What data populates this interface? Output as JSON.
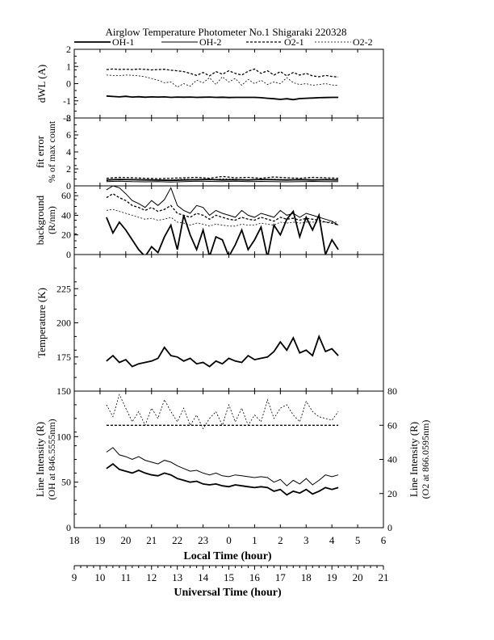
{
  "title": "Airglow Temperature Photometer No.1  Shigaraki   220328",
  "legend": [
    {
      "name": "OH-1",
      "dash": "none",
      "width": 1.8
    },
    {
      "name": "OH-2",
      "dash": "none",
      "width": 1.0
    },
    {
      "name": "O2-1",
      "dash": "3,2",
      "width": 1.3
    },
    {
      "name": "O2-2",
      "dash": "2,2",
      "width": 0.8
    }
  ],
  "chart_data": [
    {
      "type": "line",
      "panel": "dwl",
      "ylabel": "dWL (A)",
      "ylim": [
        -2,
        2
      ],
      "yticks": [
        "-2",
        "-1",
        "0",
        "1",
        "2"
      ],
      "x": [
        19.25,
        19.5,
        19.75,
        20,
        20.25,
        20.5,
        20.75,
        21,
        21.25,
        21.5,
        21.75,
        22,
        22.25,
        22.5,
        22.75,
        23,
        23.25,
        23.5,
        23.75,
        24,
        24.25,
        24.5,
        24.75,
        25,
        25.25,
        25.5,
        25.75,
        26,
        26.25,
        26.5,
        26.75,
        27,
        27.25,
        27.5,
        27.75,
        28,
        28.25
      ],
      "series": [
        {
          "name": "OH-1",
          "values": [
            -0.72,
            -0.75,
            -0.77,
            -0.74,
            -0.78,
            -0.76,
            -0.79,
            -0.77,
            -0.78,
            -0.77,
            -0.8,
            -0.78,
            -0.79,
            -0.78,
            -0.8,
            -0.79,
            -0.78,
            -0.8,
            -0.79,
            -0.81,
            -0.8,
            -0.8,
            -0.8,
            -0.8,
            -0.82,
            -0.85,
            -0.88,
            -0.92,
            -0.88,
            -0.93,
            -0.87,
            -0.85,
            -0.84,
            -0.82,
            -0.81,
            -0.8,
            -0.8
          ]
        },
        {
          "name": "O2-1",
          "values": [
            0.82,
            0.85,
            0.83,
            0.84,
            0.82,
            0.85,
            0.83,
            0.8,
            0.82,
            0.84,
            0.78,
            0.75,
            0.7,
            0.6,
            0.48,
            0.65,
            0.45,
            0.7,
            0.55,
            0.75,
            0.6,
            0.5,
            0.72,
            0.85,
            0.6,
            0.75,
            0.5,
            0.7,
            0.45,
            0.65,
            0.5,
            0.6,
            0.45,
            0.4,
            0.48,
            0.42,
            0.38
          ]
        },
        {
          "name": "O2-2",
          "values": [
            0.5,
            0.48,
            0.47,
            0.5,
            0.49,
            0.45,
            0.4,
            0.3,
            0.2,
            0.05,
            0.1,
            -0.2,
            0.0,
            -0.15,
            0.2,
            0.05,
            0.35,
            -0.05,
            0.4,
            0.1,
            0.3,
            -0.1,
            0.25,
            0.0,
            0.2,
            -0.05,
            0.1,
            0.0,
            0.35,
            0.05,
            -0.05,
            0.0,
            -0.1,
            -0.05,
            0.0,
            -0.08,
            -0.1
          ]
        }
      ]
    },
    {
      "type": "line",
      "panel": "fit",
      "ylabel": "fit error",
      "ylabel2": "% of max count",
      "ylim": [
        0,
        8
      ],
      "yticks": [
        "0",
        "2",
        "4",
        "6",
        "8"
      ],
      "x": [
        19.25,
        19.75,
        20.25,
        20.75,
        21.25,
        21.75,
        22.25,
        22.75,
        23.25,
        23.75,
        24.25,
        24.75,
        25.25,
        25.75,
        26.25,
        26.75,
        27.25,
        27.75,
        28.25
      ],
      "series": [
        {
          "name": "OH-1",
          "values": [
            0.7,
            0.75,
            0.72,
            0.7,
            0.68,
            0.65,
            0.7,
            0.72,
            0.75,
            0.7,
            0.72,
            0.7,
            0.75,
            0.72,
            0.7,
            0.73,
            0.7,
            0.72,
            0.7
          ]
        },
        {
          "name": "OH-2",
          "values": [
            0.5,
            0.55,
            0.5,
            0.48,
            0.5,
            0.45,
            0.5,
            0.55,
            0.52,
            0.5,
            0.55,
            0.5,
            0.52,
            0.5,
            0.48,
            0.5,
            0.52,
            0.5,
            0.5
          ]
        },
        {
          "name": "O2-1",
          "values": [
            0.9,
            1.0,
            0.95,
            0.9,
            0.85,
            0.9,
            0.95,
            1.0,
            0.9,
            1.1,
            0.95,
            1.0,
            0.9,
            1.05,
            0.95,
            0.9,
            1.0,
            0.95,
            0.9
          ]
        },
        {
          "name": "O2-2",
          "values": [
            0.6,
            0.8,
            0.7,
            0.75,
            0.65,
            0.7,
            0.8,
            0.75,
            0.7,
            0.85,
            0.8,
            0.7,
            0.75,
            0.8,
            0.7,
            0.75,
            0.7,
            0.8,
            0.75
          ]
        }
      ]
    },
    {
      "type": "line",
      "panel": "background",
      "ylabel": "background",
      "ylabel2": "(R/nm)",
      "ylim": [
        0,
        70
      ],
      "yticks": [
        "0",
        "20",
        "40",
        "60"
      ],
      "x": [
        19.25,
        19.5,
        19.75,
        20,
        20.25,
        20.5,
        20.75,
        21,
        21.25,
        21.5,
        21.75,
        22,
        22.25,
        22.5,
        22.75,
        23,
        23.25,
        23.5,
        23.75,
        24,
        24.25,
        24.5,
        24.75,
        25,
        25.25,
        25.5,
        25.75,
        26,
        26.25,
        26.5,
        26.75,
        27,
        27.25,
        27.5,
        27.75,
        28,
        28.25
      ],
      "series": [
        {
          "name": "OH-1",
          "values": [
            38,
            22,
            33,
            25,
            15,
            5,
            -2,
            8,
            2,
            18,
            30,
            5,
            40,
            20,
            5,
            25,
            -2,
            18,
            15,
            -2,
            10,
            25,
            5,
            15,
            28,
            -3,
            30,
            20,
            36,
            44,
            18,
            38,
            25,
            40,
            0,
            15,
            5
          ]
        },
        {
          "name": "OH-2",
          "values": [
            66,
            70,
            68,
            62,
            55,
            52,
            48,
            55,
            50,
            56,
            68,
            50,
            45,
            42,
            50,
            48,
            40,
            45,
            42,
            40,
            38,
            45,
            40,
            38,
            42,
            40,
            38,
            45,
            40,
            42,
            38,
            42,
            40,
            38,
            36,
            34,
            30
          ]
        },
        {
          "name": "O2-1",
          "values": [
            58,
            62,
            58,
            55,
            50,
            48,
            45,
            48,
            44,
            46,
            50,
            42,
            40,
            38,
            42,
            40,
            36,
            40,
            38,
            36,
            35,
            38,
            36,
            35,
            38,
            36,
            34,
            38,
            36,
            37,
            35,
            37,
            36,
            35,
            33,
            32,
            30
          ]
        },
        {
          "name": "O2-2",
          "values": [
            45,
            46,
            44,
            42,
            40,
            38,
            36,
            37,
            35,
            36,
            38,
            33,
            32,
            30,
            32,
            31,
            29,
            31,
            30,
            29,
            29,
            31,
            30,
            30,
            32,
            31,
            30,
            33,
            32,
            33,
            32,
            33,
            33,
            33,
            33,
            33,
            33
          ]
        }
      ]
    },
    {
      "type": "line",
      "panel": "temperature",
      "ylabel": "Temperature (K)",
      "ylim": [
        150,
        250
      ],
      "yticks": [
        "175",
        "200",
        "225"
      ],
      "x": [
        19.25,
        19.5,
        19.75,
        20,
        20.25,
        20.5,
        20.75,
        21,
        21.25,
        21.5,
        21.75,
        22,
        22.25,
        22.5,
        22.75,
        23,
        23.25,
        23.5,
        23.75,
        24,
        24.25,
        24.5,
        24.75,
        25,
        25.25,
        25.5,
        25.75,
        26,
        26.25,
        26.5,
        26.75,
        27,
        27.25,
        27.5,
        27.75,
        28,
        28.25
      ],
      "series": [
        {
          "name": "OH-1",
          "values": [
            172,
            176,
            171,
            173,
            168,
            170,
            171,
            172,
            174,
            182,
            176,
            175,
            172,
            174,
            170,
            171,
            168,
            172,
            170,
            174,
            172,
            171,
            176,
            173,
            174,
            175,
            179,
            186,
            180,
            189,
            178,
            180,
            176,
            190,
            179,
            181,
            176
          ]
        }
      ]
    },
    {
      "type": "line",
      "panel": "intensity",
      "ylabel": "Line Intensity (R)",
      "ylabel2": "(OH at 846.5555nm)",
      "ylabel_right": "Line Intensity (R)",
      "ylabel_right2": "(O2 at 866.0595nm)",
      "ylim": [
        0,
        150
      ],
      "yticks": [
        "0",
        "50",
        "100",
        "150"
      ],
      "ylim_right": [
        0,
        80
      ],
      "yticks_right": [
        "0",
        "20",
        "40",
        "60",
        "80"
      ],
      "x": [
        19.25,
        19.5,
        19.75,
        20,
        20.25,
        20.5,
        20.75,
        21,
        21.25,
        21.5,
        21.75,
        22,
        22.25,
        22.5,
        22.75,
        23,
        23.25,
        23.5,
        23.75,
        24,
        24.25,
        24.5,
        24.75,
        25,
        25.25,
        25.5,
        25.75,
        26,
        26.25,
        26.5,
        26.75,
        27,
        27.25,
        27.5,
        27.75,
        28,
        28.25
      ],
      "series": [
        {
          "name": "OH-1",
          "axis": "left",
          "values": [
            65,
            70,
            64,
            62,
            60,
            63,
            60,
            58,
            57,
            60,
            58,
            54,
            52,
            50,
            51,
            48,
            47,
            48,
            46,
            45,
            47,
            46,
            45,
            44,
            45,
            44,
            40,
            42,
            36,
            40,
            38,
            42,
            37,
            40,
            44,
            42,
            44
          ]
        },
        {
          "name": "OH-2",
          "axis": "left",
          "values": [
            83,
            88,
            80,
            78,
            75,
            78,
            74,
            72,
            70,
            74,
            72,
            68,
            65,
            62,
            63,
            60,
            58,
            60,
            57,
            56,
            58,
            57,
            56,
            55,
            56,
            55,
            50,
            53,
            46,
            52,
            48,
            54,
            47,
            52,
            58,
            56,
            58
          ]
        },
        {
          "name": "O2-1",
          "axis": "right",
          "values": [
            60,
            60,
            60,
            60,
            60,
            60,
            60,
            60,
            60,
            60,
            60,
            60,
            60,
            60,
            60,
            60,
            60,
            60,
            60,
            60,
            60,
            60,
            60,
            60,
            60,
            60,
            60,
            60,
            60,
            60,
            60,
            60,
            60,
            60,
            60,
            60,
            60
          ]
        },
        {
          "name": "O2-2",
          "axis": "right",
          "values": [
            72,
            65,
            78,
            70,
            62,
            68,
            60,
            70,
            64,
            75,
            68,
            62,
            70,
            60,
            66,
            58,
            64,
            68,
            60,
            72,
            62,
            70,
            60,
            66,
            62,
            75,
            64,
            70,
            72,
            66,
            62,
            74,
            68,
            65,
            64,
            63,
            68
          ]
        }
      ]
    },
    {
      "type": "axis",
      "panel": "local-time-axis",
      "xlabel": "Local Time (hour)",
      "ticks": [
        "18",
        "19",
        "20",
        "21",
        "22",
        "23",
        "0",
        "1",
        "2",
        "3",
        "4",
        "5",
        "6"
      ]
    },
    {
      "type": "axis",
      "panel": "ut-axis",
      "xlabel": "Universal Time (hour)",
      "ticks": [
        "9",
        "10",
        "11",
        "12",
        "13",
        "14",
        "15",
        "16",
        "17",
        "18",
        "19",
        "20",
        "21"
      ]
    }
  ]
}
